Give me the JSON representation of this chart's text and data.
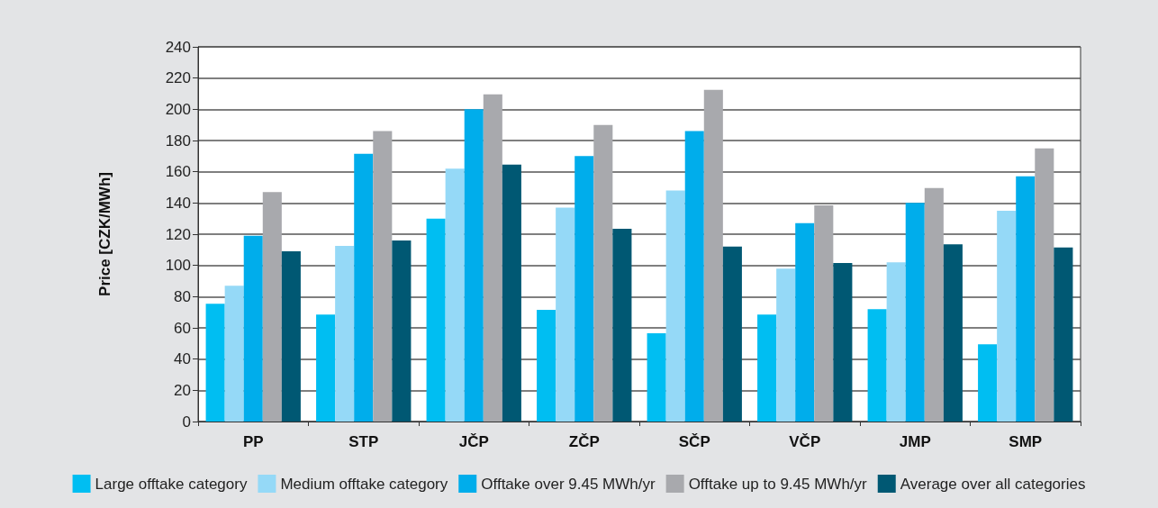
{
  "chart_data": {
    "type": "bar",
    "ylabel": "Price [CZK/MWh]",
    "categories": [
      "PP",
      "STP",
      "JČP",
      "ZČP",
      "SČP",
      "VČP",
      "JMP",
      "SMP"
    ],
    "series": [
      {
        "name": "Large offtake category",
        "color": "#00bef2",
        "values": [
          75.5,
          68.5,
          130,
          71.5,
          56.5,
          68.5,
          72,
          49.5
        ]
      },
      {
        "name": "Medium offtake category",
        "color": "#95d9f7",
        "values": [
          87,
          112.5,
          162,
          137,
          148,
          98,
          102,
          135
        ]
      },
      {
        "name": "Offtake over 9.45 MWh/yr",
        "color": "#00adeb",
        "values": [
          119,
          171.5,
          200,
          170,
          186,
          127,
          140,
          157
        ]
      },
      {
        "name": "Offtake up to 9.45 MWh/yr",
        "color": "#a8a9ad",
        "values": [
          147,
          186,
          209.5,
          190,
          212.5,
          138.5,
          149.5,
          175
        ]
      },
      {
        "name": "Average over all categories",
        "color": "#005873",
        "values": [
          109,
          116,
          164.5,
          123.5,
          112,
          101.5,
          113.5,
          111.5
        ]
      }
    ],
    "ylim": [
      0,
      240
    ],
    "yticks": [
      0,
      20,
      40,
      60,
      80,
      100,
      120,
      140,
      160,
      180,
      200,
      220,
      240
    ],
    "grid": "y",
    "legend": "bottom"
  }
}
